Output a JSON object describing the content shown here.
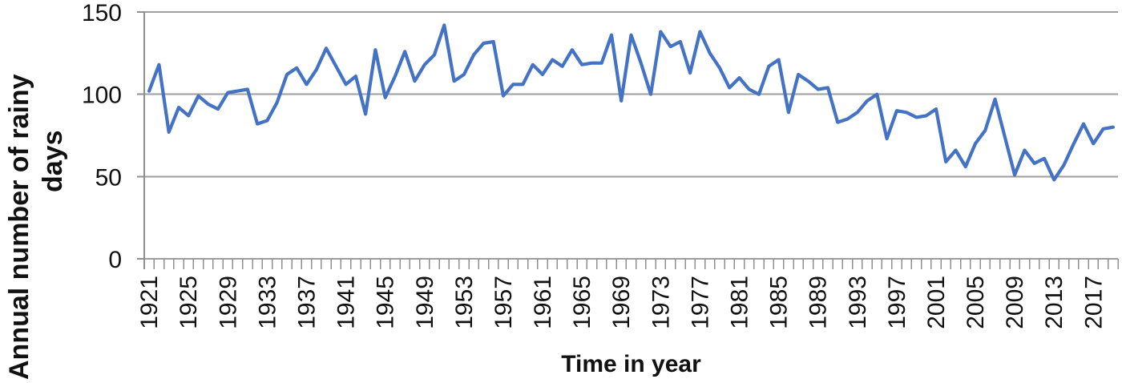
{
  "chart_data": {
    "type": "line",
    "title": "",
    "xlabel": "Time in year",
    "ylabel": "Annual number of rainy days",
    "ylabel_lines": [
      "Annual number of rainy",
      "days"
    ],
    "x_start_year": 1921,
    "x_end_year": 2019,
    "x_tick_labels": [
      "1921",
      "1925",
      "1929",
      "1933",
      "1937",
      "1941",
      "1945",
      "1949",
      "1953",
      "1957",
      "1961",
      "1965",
      "1969",
      "1973",
      "1977",
      "1981",
      "1985",
      "1989",
      "1993",
      "1997",
      "2001",
      "2005",
      "2009",
      "2013",
      "2017"
    ],
    "y_ticks": [
      0,
      50,
      100,
      150
    ],
    "ylim": [
      0,
      150
    ],
    "grid": "horizontal-only",
    "legend": "none",
    "line_color": "#4472C4",
    "grid_color": "#9E9E9E",
    "axis_color": "#8F8F8F",
    "text_color": "#111111",
    "series": [
      {
        "name": "Annual number of rainy days",
        "values": [
          102,
          118,
          77,
          92,
          87,
          99,
          94,
          91,
          101,
          102,
          103,
          82,
          84,
          95,
          112,
          116,
          106,
          115,
          128,
          117,
          106,
          111,
          88,
          127,
          98,
          111,
          126,
          108,
          118,
          124,
          142,
          108,
          112,
          124,
          131,
          132,
          99,
          106,
          106,
          118,
          112,
          121,
          117,
          127,
          118,
          119,
          119,
          136,
          96,
          136,
          119,
          100,
          138,
          129,
          132,
          113,
          138,
          125,
          116,
          104,
          110,
          103,
          100,
          117,
          121,
          89,
          112,
          108,
          103,
          104,
          83,
          85,
          89,
          96,
          100,
          73,
          90,
          89,
          86,
          87,
          91,
          59,
          66,
          56,
          70,
          78,
          97,
          74,
          51,
          66,
          58,
          61,
          48,
          57,
          70,
          82,
          70,
          79,
          80
        ]
      }
    ]
  }
}
